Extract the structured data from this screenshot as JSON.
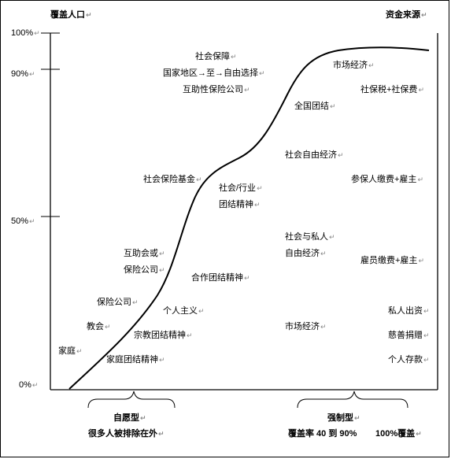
{
  "header": {
    "left_title": "覆盖人口",
    "right_title": "资金来源"
  },
  "y_axis": {
    "ticks": [
      "100%",
      "90%",
      "50%",
      "0%"
    ]
  },
  "stages": [
    "社会保障",
    "国家地区→至→自由选择",
    "互助性保险公司",
    "市场经济",
    "全国团结",
    "社会自由经济",
    "社会保险基金",
    "社会/行业",
    "团结精神",
    "社会与私人",
    "自由经济",
    "互助会或",
    "保险公司",
    "合作团结精神",
    "保险公司",
    "个人主义",
    "教会",
    "宗教团结精神",
    "市场经济",
    "家庭",
    "家庭团结精神"
  ],
  "funding": [
    "社保税+社保费",
    "参保人缴费+雇主",
    "雇员缴费+雇主",
    "私人出资",
    "慈善捐赠",
    "个人存款"
  ],
  "footer": {
    "voluntary_title": "自愿型",
    "voluntary_desc": "很多人被排除在外",
    "compulsory_title": "强制型",
    "coverage_rate": "覆盖率 40 到 90%",
    "full_coverage": "100%覆盖"
  },
  "colors": {
    "line": "#000000",
    "text": "#000000",
    "edit_mark": "#888888"
  }
}
